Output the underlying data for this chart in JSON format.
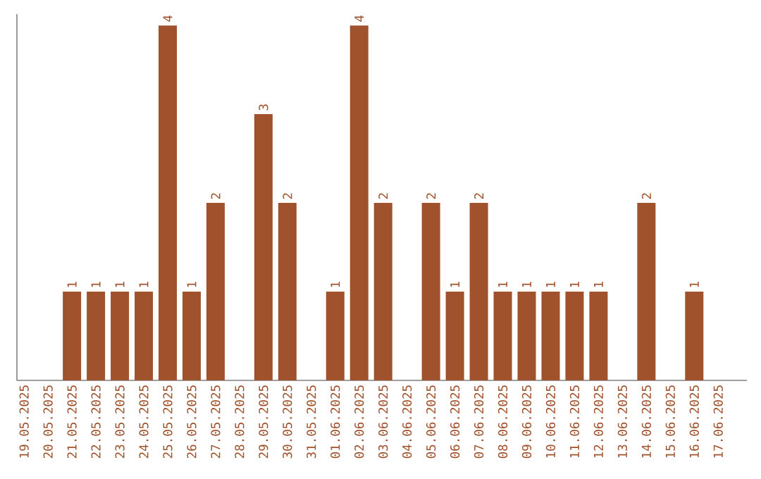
{
  "chart_data": {
    "type": "bar",
    "categories": [
      "19.05.2025",
      "20.05.2025",
      "21.05.2025",
      "22.05.2025",
      "23.05.2025",
      "24.05.2025",
      "25.05.2025",
      "26.05.2025",
      "27.05.2025",
      "28.05.2025",
      "29.05.2025",
      "30.05.2025",
      "31.05.2025",
      "01.06.2025",
      "02.06.2025",
      "03.06.2025",
      "04.06.2025",
      "05.06.2025",
      "06.06.2025",
      "07.06.2025",
      "08.06.2025",
      "09.06.2025",
      "10.06.2025",
      "11.06.2025",
      "12.06.2025",
      "13.06.2025",
      "14.06.2025",
      "15.06.2025",
      "16.06.2025",
      "17.06.2025"
    ],
    "values": [
      null,
      null,
      1,
      1,
      1,
      1,
      4,
      1,
      2,
      null,
      3,
      2,
      null,
      1,
      4,
      2,
      null,
      2,
      1,
      2,
      1,
      1,
      1,
      1,
      1,
      null,
      2,
      null,
      1,
      null
    ],
    "color": "#a0522d",
    "data_labels": true
  }
}
